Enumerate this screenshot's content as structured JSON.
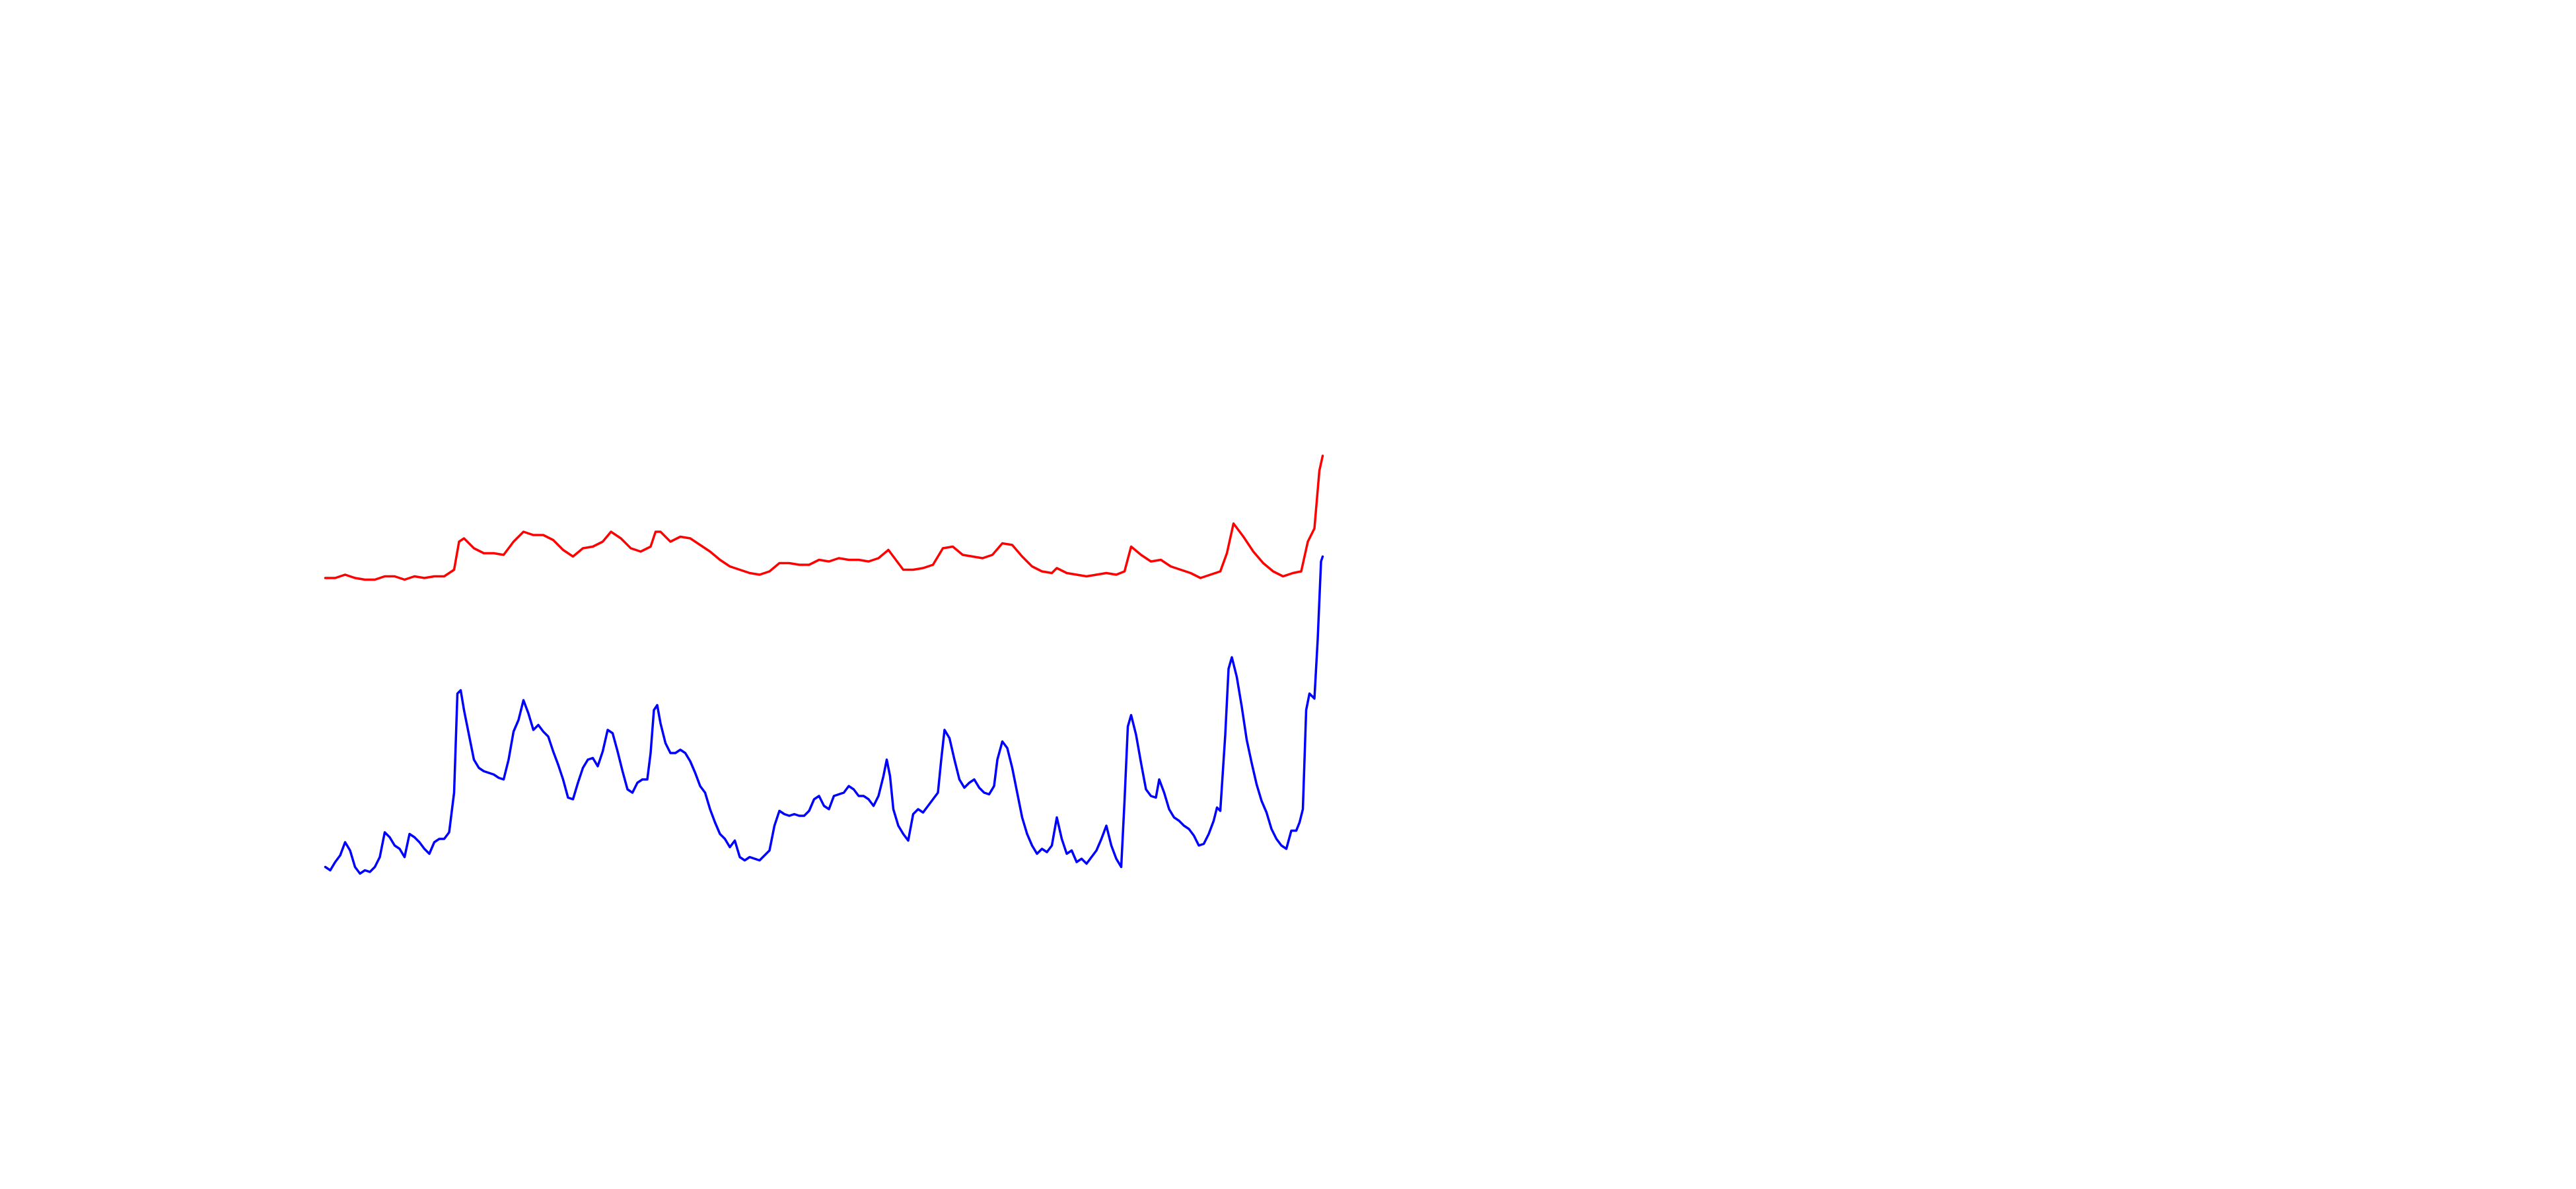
{
  "chart_data": {
    "type": "line",
    "xlim": [
      0,
      1560
    ],
    "ylim": [
      720,
      0
    ],
    "series": [
      {
        "color": "#ff0000",
        "x": [
          197,
          203,
          209,
          215,
          221,
          227,
          233,
          239,
          245,
          251,
          257,
          263,
          269,
          275,
          278,
          281,
          287,
          293,
          299,
          305,
          311,
          317,
          323,
          329,
          335,
          341,
          347,
          353,
          359,
          365,
          370,
          376,
          382,
          388,
          394,
          397,
          400,
          406,
          412,
          418,
          424,
          430,
          436,
          442,
          448,
          454,
          460,
          466,
          472,
          478,
          484,
          490,
          496,
          502,
          508,
          514,
          520,
          526,
          532,
          538,
          541,
          547,
          553,
          559,
          565,
          571,
          577,
          583,
          589,
          595,
          601,
          607,
          613,
          619,
          625,
          631,
          637,
          640,
          646,
          652,
          658,
          664,
          670,
          676,
          681,
          685,
          691,
          697,
          703,
          709,
          715,
          721,
          727,
          733,
          739,
          743,
          747,
          753,
          759,
          765,
          771,
          777,
          783,
          788,
          792,
          796,
          799,
          801
        ],
        "values": [
          350,
          350,
          348,
          350,
          351,
          351,
          349,
          349,
          351,
          349,
          350,
          349,
          349,
          345,
          328,
          326,
          332,
          335,
          335,
          336,
          328,
          322,
          324,
          324,
          327,
          333,
          337,
          332,
          331,
          328,
          322,
          326,
          332,
          334,
          331,
          322,
          322,
          328,
          325,
          326,
          330,
          334,
          339,
          343,
          345,
          347,
          348,
          346,
          341,
          341,
          342,
          342,
          339,
          340,
          338,
          339,
          339,
          340,
          338,
          333,
          337,
          345,
          345,
          344,
          342,
          332,
          331,
          336,
          337,
          338,
          336,
          329,
          330,
          337,
          343,
          346,
          347,
          344,
          347,
          348,
          349,
          348,
          347,
          348,
          346,
          331,
          336,
          340,
          339,
          343,
          345,
          347,
          350,
          348,
          346,
          335,
          317,
          325,
          334,
          341,
          346,
          349,
          347,
          346,
          328,
          320,
          285,
          276
        ]
      },
      {
        "color": "#0000ff",
        "x": [
          197,
          200,
          203,
          206,
          209,
          212,
          215,
          218,
          221,
          224,
          227,
          230,
          233,
          236,
          239,
          242,
          245,
          248,
          251,
          254,
          257,
          260,
          263,
          266,
          269,
          272,
          275,
          277,
          279,
          281,
          284,
          287,
          290,
          293,
          296,
          299,
          302,
          305,
          308,
          311,
          314,
          317,
          320,
          323,
          326,
          329,
          332,
          335,
          338,
          341,
          344,
          347,
          350,
          353,
          356,
          359,
          362,
          365,
          368,
          371,
          374,
          377,
          380,
          383,
          386,
          389,
          392,
          394,
          396,
          398,
          400,
          403,
          406,
          409,
          412,
          415,
          418,
          421,
          424,
          427,
          430,
          433,
          436,
          439,
          442,
          445,
          448,
          451,
          454,
          457,
          460,
          463,
          466,
          469,
          472,
          475,
          478,
          481,
          484,
          487,
          490,
          493,
          496,
          499,
          502,
          505,
          508,
          511,
          514,
          517,
          520,
          523,
          526,
          529,
          532,
          535,
          537,
          539,
          541,
          544,
          547,
          550,
          553,
          556,
          559,
          562,
          565,
          568,
          570,
          572,
          575,
          578,
          581,
          584,
          587,
          590,
          593,
          596,
          599,
          602,
          604,
          607,
          610,
          613,
          616,
          619,
          622,
          625,
          628,
          631,
          634,
          637,
          640,
          643,
          646,
          649,
          652,
          655,
          658,
          661,
          664,
          667,
          670,
          673,
          676,
          679,
          681,
          683,
          685,
          688,
          691,
          694,
          697,
          700,
          702,
          705,
          708,
          711,
          714,
          717,
          720,
          723,
          726,
          729,
          732,
          735,
          737,
          739,
          742,
          744,
          746,
          749,
          752,
          755,
          758,
          761,
          764,
          767,
          770,
          773,
          776,
          779,
          782,
          785,
          787,
          789,
          791,
          793,
          796,
          798,
          800,
          801
        ],
        "values": [
          525,
          527,
          522,
          518,
          510,
          515,
          525,
          529,
          527,
          528,
          525,
          519,
          504,
          507,
          512,
          514,
          519,
          505,
          507,
          510,
          514,
          517,
          510,
          508,
          508,
          504,
          480,
          420,
          418,
          430,
          445,
          460,
          465,
          467,
          468,
          469,
          471,
          472,
          460,
          443,
          436,
          424,
          432,
          442,
          439,
          443,
          446,
          455,
          463,
          472,
          483,
          484,
          474,
          465,
          460,
          459,
          464,
          455,
          442,
          444,
          455,
          467,
          478,
          480,
          474,
          472,
          472,
          456,
          430,
          427,
          438,
          450,
          456,
          456,
          454,
          456,
          461,
          468,
          476,
          480,
          490,
          498,
          505,
          508,
          513,
          509,
          519,
          521,
          519,
          520,
          521,
          518,
          515,
          500,
          491,
          493,
          494,
          493,
          494,
          494,
          491,
          484,
          482,
          488,
          490,
          482,
          481,
          480,
          476,
          478,
          482,
          482,
          484,
          488,
          482,
          470,
          460,
          470,
          490,
          500,
          505,
          509,
          493,
          490,
          492,
          488,
          484,
          480,
          460,
          442,
          447,
          460,
          472,
          477,
          474,
          472,
          477,
          480,
          481,
          476,
          460,
          449,
          453,
          465,
          480,
          495,
          505,
          512,
          517,
          514,
          516,
          512,
          495,
          508,
          517,
          515,
          522,
          520,
          523,
          519,
          515,
          508,
          500,
          512,
          520,
          525,
          485,
          440,
          433,
          445,
          462,
          478,
          482,
          483,
          472,
          480,
          490,
          495,
          497,
          500,
          502,
          506,
          512,
          511,
          505,
          497,
          489,
          491,
          445,
          405,
          398,
          410,
          428,
          448,
          462,
          475,
          485,
          492,
          502,
          508,
          512,
          514,
          503,
          503,
          498,
          490,
          430,
          420,
          423,
          387,
          340,
          337
        ]
      }
    ]
  }
}
